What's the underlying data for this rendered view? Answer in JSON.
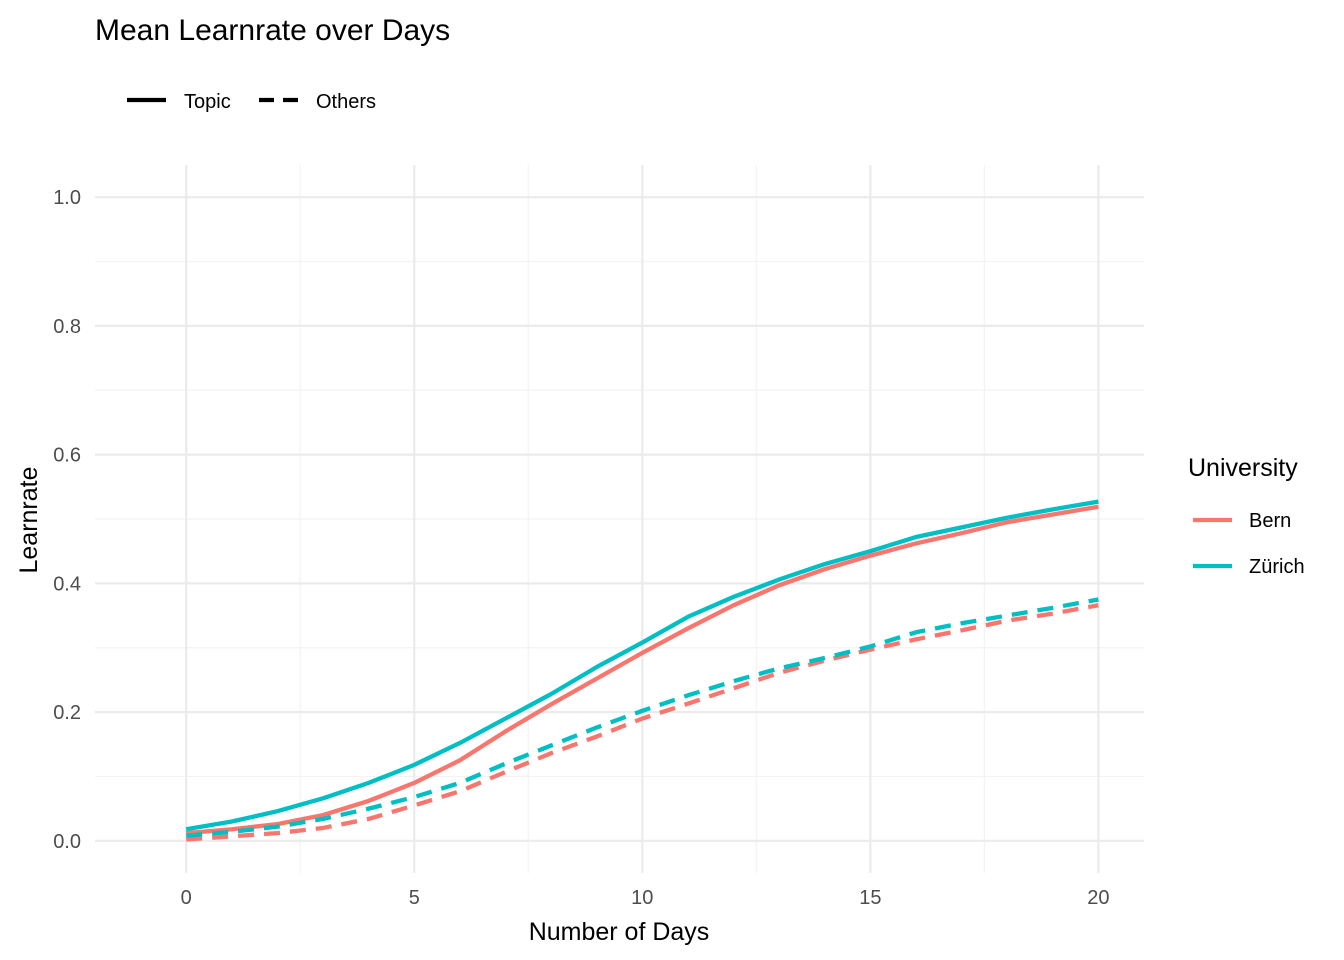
{
  "chart_data": {
    "type": "line",
    "title": "Mean Learnrate over Days",
    "xlabel": "Number of Days",
    "ylabel": "Learnrate",
    "xlim": [
      -2,
      21
    ],
    "ylim": [
      -0.05,
      1.05
    ],
    "x_ticks": [
      0,
      5,
      10,
      15,
      20
    ],
    "y_ticks": [
      0.0,
      0.2,
      0.4,
      0.6,
      0.8,
      1.0
    ],
    "y_tick_labels": [
      "0.0",
      "0.2",
      "0.4",
      "0.6",
      "0.8",
      "1.0"
    ],
    "grid": true,
    "linetype_legend": {
      "placement": "top-left",
      "items": [
        {
          "label": "Topic",
          "dash": "solid"
        },
        {
          "label": "Others",
          "dash": "dashed"
        }
      ]
    },
    "color_legend": {
      "title": "University",
      "placement": "right",
      "items": [
        {
          "label": "Bern",
          "color": "#F8766D"
        },
        {
          "label": "Zürich",
          "color": "#00BFC4"
        }
      ]
    },
    "x": [
      0,
      1,
      2,
      3,
      4,
      5,
      6,
      7,
      8,
      9,
      10,
      11,
      12,
      13,
      14,
      15,
      16,
      17,
      18,
      19,
      20
    ],
    "series": [
      {
        "university": "Bern",
        "type": "Topic",
        "color": "#F8766D",
        "dash": "solid",
        "values": [
          0.012,
          0.018,
          0.026,
          0.04,
          0.062,
          0.09,
          0.125,
          0.17,
          0.212,
          0.252,
          0.292,
          0.33,
          0.366,
          0.397,
          0.422,
          0.443,
          0.462,
          0.478,
          0.495,
          0.507,
          0.519
        ]
      },
      {
        "university": "Zürich",
        "type": "Topic",
        "color": "#00BFC4",
        "dash": "solid",
        "values": [
          0.018,
          0.03,
          0.046,
          0.066,
          0.09,
          0.118,
          0.152,
          0.19,
          0.228,
          0.27,
          0.308,
          0.348,
          0.379,
          0.406,
          0.43,
          0.45,
          0.472,
          0.487,
          0.502,
          0.515,
          0.527
        ]
      },
      {
        "university": "Bern",
        "type": "Others",
        "color": "#F8766D",
        "dash": "dashed",
        "values": [
          0.002,
          0.007,
          0.012,
          0.02,
          0.034,
          0.055,
          0.077,
          0.107,
          0.136,
          0.162,
          0.19,
          0.213,
          0.237,
          0.261,
          0.28,
          0.297,
          0.313,
          0.327,
          0.342,
          0.353,
          0.366
        ]
      },
      {
        "university": "Zürich",
        "type": "Others",
        "color": "#00BFC4",
        "dash": "dashed",
        "values": [
          0.008,
          0.014,
          0.022,
          0.034,
          0.05,
          0.068,
          0.09,
          0.12,
          0.148,
          0.176,
          0.202,
          0.226,
          0.248,
          0.268,
          0.284,
          0.302,
          0.324,
          0.338,
          0.35,
          0.362,
          0.375
        ]
      }
    ]
  }
}
